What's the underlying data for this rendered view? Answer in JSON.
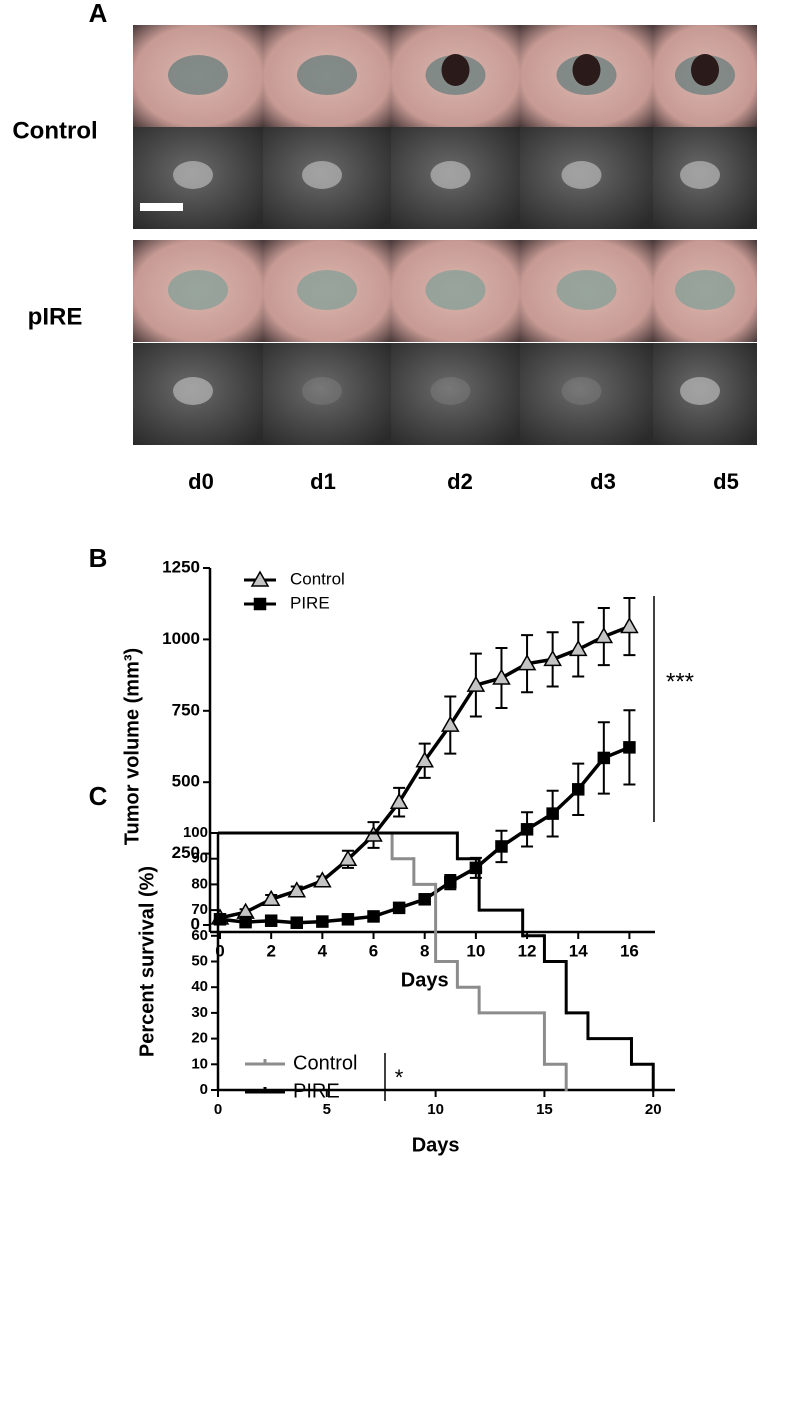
{
  "panel_a": {
    "label": "A",
    "rows": [
      "Control",
      "pIRE"
    ],
    "columns": [
      "d0",
      "d1",
      "d2",
      "d3",
      "d5"
    ]
  },
  "chart_data": [
    {
      "type": "line_error",
      "panel_label": "B",
      "x_label": "Days",
      "y_label": "Tumor volume (mm³)",
      "x": [
        0,
        1,
        2,
        3,
        4,
        5,
        6,
        7,
        8,
        9,
        10,
        11,
        12,
        13,
        14,
        15,
        16
      ],
      "xlim": [
        0,
        17
      ],
      "xticks": [
        0,
        2,
        4,
        6,
        8,
        10,
        12,
        14,
        16
      ],
      "ylim": [
        0,
        1250
      ],
      "yticks": [
        0,
        250,
        500,
        750,
        1000,
        1250
      ],
      "series": [
        {
          "name": "Control",
          "marker": "triangle",
          "color": "#c4c4c4",
          "line_color": "#000000",
          "values": [
            25,
            45,
            90,
            120,
            155,
            230,
            315,
            430,
            575,
            700,
            840,
            865,
            915,
            930,
            965,
            1010,
            1045
          ],
          "errors": [
            10,
            10,
            15,
            15,
            15,
            30,
            45,
            50,
            60,
            100,
            110,
            105,
            100,
            95,
            95,
            100,
            100
          ]
        },
        {
          "name": "PIRE",
          "marker": "square",
          "color": "#000000",
          "line_color": "#000000",
          "values": [
            20,
            10,
            15,
            8,
            12,
            20,
            30,
            60,
            90,
            150,
            200,
            275,
            335,
            390,
            475,
            585,
            622
          ],
          "errors": [
            5,
            5,
            5,
            5,
            5,
            10,
            10,
            10,
            10,
            25,
            35,
            55,
            60,
            80,
            90,
            125,
            130
          ]
        }
      ],
      "significance": "***"
    },
    {
      "type": "step",
      "panel_label": "C",
      "x_label": "Days",
      "y_label": "Percent survival (%)",
      "xlim": [
        0,
        21
      ],
      "xticks": [
        0,
        5,
        10,
        15,
        20
      ],
      "ylim": [
        0,
        100
      ],
      "yticks": [
        0,
        10,
        20,
        30,
        40,
        50,
        60,
        70,
        80,
        90,
        100
      ],
      "series": [
        {
          "name": "Control",
          "color": "#8c8c8c",
          "x": [
            0,
            8,
            9,
            10,
            11,
            12,
            15,
            16
          ],
          "values": [
            100,
            90,
            80,
            50,
            40,
            30,
            10,
            0
          ]
        },
        {
          "name": "PIRE",
          "color": "#000000",
          "x": [
            0,
            11,
            12,
            14,
            15,
            16,
            17,
            19,
            20
          ],
          "values": [
            100,
            90,
            70,
            60,
            50,
            30,
            20,
            10,
            0
          ]
        }
      ],
      "significance": "*"
    }
  ]
}
